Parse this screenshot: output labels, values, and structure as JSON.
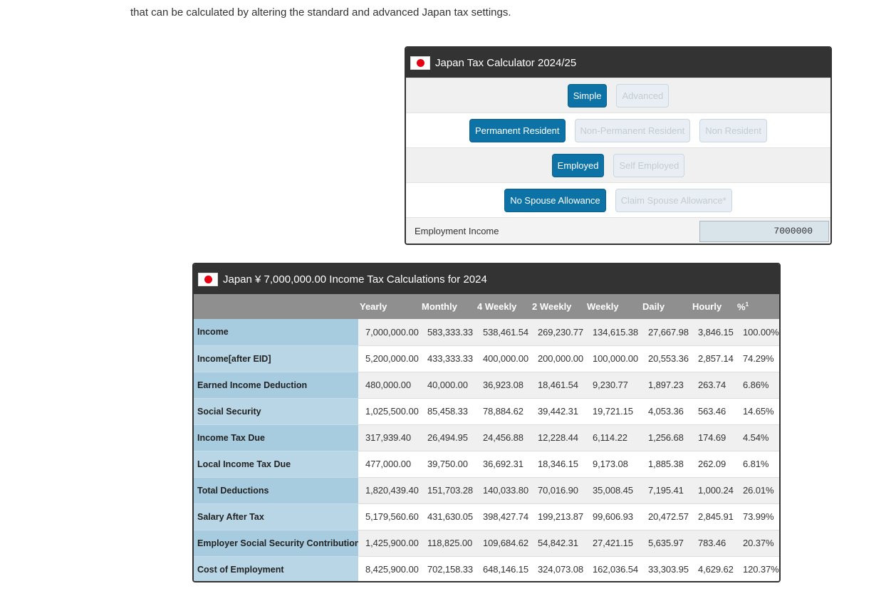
{
  "intro_text": "that can be calculated by altering the standard and advanced Japan tax settings.",
  "calculator": {
    "title": "Japan Tax Calculator 2024/25",
    "mode_buttons": [
      {
        "label": "Simple",
        "active": true
      },
      {
        "label": "Advanced",
        "active": false
      }
    ],
    "residency_buttons": [
      {
        "label": "Permanent Resident",
        "active": true
      },
      {
        "label": "Non-Permanent Resident",
        "active": false
      },
      {
        "label": "Non Resident",
        "active": false
      }
    ],
    "employment_buttons": [
      {
        "label": "Employed",
        "active": true
      },
      {
        "label": "Self Employed",
        "active": false
      }
    ],
    "spouse_buttons": [
      {
        "label": "No Spouse Allowance",
        "active": true
      },
      {
        "label": "Claim Spouse Allowance*",
        "active": false
      }
    ],
    "income_label": "Employment Income",
    "income_value": "7000000"
  },
  "results": {
    "title": "Japan ¥ 7,000,000.00 Income Tax Calculations for 2024",
    "columns": [
      "Yearly",
      "Monthly",
      "4 Weekly",
      "2 Weekly",
      "Weekly",
      "Daily",
      "Hourly",
      "%"
    ],
    "percent_footnote": "1",
    "rows": [
      {
        "label": "Income",
        "values": [
          "7,000,000.00",
          "583,333.33",
          "538,461.54",
          "269,230.77",
          "134,615.38",
          "27,667.98",
          "3,846.15",
          "100.00%"
        ]
      },
      {
        "label": "Income[after EID]",
        "values": [
          "5,200,000.00",
          "433,333.33",
          "400,000.00",
          "200,000.00",
          "100,000.00",
          "20,553.36",
          "2,857.14",
          "74.29%"
        ]
      },
      {
        "label": "Earned Income Deduction",
        "values": [
          "480,000.00",
          "40,000.00",
          "36,923.08",
          "18,461.54",
          "9,230.77",
          "1,897.23",
          "263.74",
          "6.86%"
        ]
      },
      {
        "label": "Social Security",
        "values": [
          "1,025,500.00",
          "85,458.33",
          "78,884.62",
          "39,442.31",
          "19,721.15",
          "4,053.36",
          "563.46",
          "14.65%"
        ]
      },
      {
        "label": "Income Tax Due",
        "values": [
          "317,939.40",
          "26,494.95",
          "24,456.88",
          "12,228.44",
          "6,114.22",
          "1,256.68",
          "174.69",
          "4.54%"
        ]
      },
      {
        "label": "Local Income Tax Due",
        "values": [
          "477,000.00",
          "39,750.00",
          "36,692.31",
          "18,346.15",
          "9,173.08",
          "1,885.38",
          "262.09",
          "6.81%"
        ]
      },
      {
        "label": "Total Deductions",
        "values": [
          "1,820,439.40",
          "151,703.28",
          "140,033.80",
          "70,016.90",
          "35,008.45",
          "7,195.41",
          "1,000.24",
          "26.01%"
        ]
      },
      {
        "label": "Salary After Tax",
        "values": [
          "5,179,560.60",
          "431,630.05",
          "398,427.74",
          "199,213.87",
          "99,606.93",
          "20,472.57",
          "2,845.91",
          "73.99%"
        ]
      },
      {
        "label": "Employer Social Security Contributions",
        "values": [
          "1,425,900.00",
          "118,825.00",
          "109,684.62",
          "54,842.31",
          "27,421.15",
          "5,635.97",
          "783.46",
          "20.37%"
        ]
      },
      {
        "label": "Cost of Employment",
        "values": [
          "8,425,900.00",
          "702,158.33",
          "648,146.15",
          "324,073.08",
          "162,036.54",
          "33,303.95",
          "4,629.62",
          "120.37%"
        ]
      }
    ]
  },
  "colors": {
    "header_bg": "#333333",
    "active_button": "#0d72a6",
    "flag_red": "#e60012",
    "label_column": "#a8ccdf"
  }
}
